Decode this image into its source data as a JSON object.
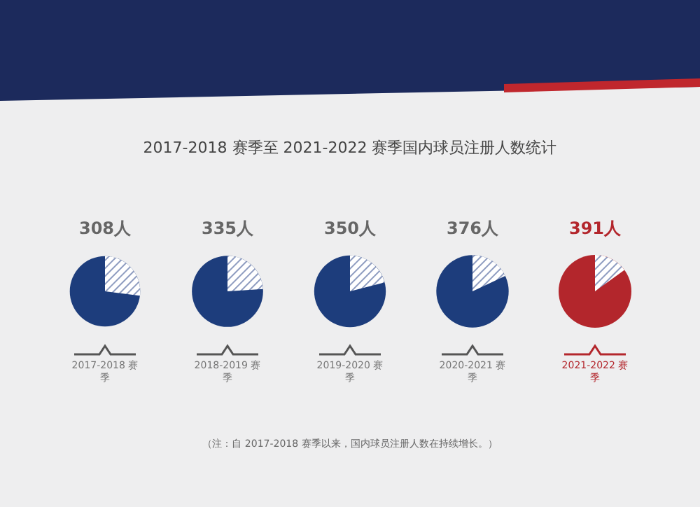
{
  "chart_data": {
    "type": "other",
    "title": "2017-2018 赛季至 2021-2022 赛季国内球员注册人数统计",
    "categories": [
      "2017-2018 赛季",
      "2018-2019 赛季",
      "2019-2020 赛季",
      "2020-2021 赛季",
      "2021-2022 赛季"
    ],
    "values": [
      308,
      335,
      350,
      376,
      391
    ],
    "value_labels": [
      "308人",
      "335人",
      "350人",
      "376人",
      "391人"
    ],
    "colors": [
      "#1d3d7c",
      "#1d3d7c",
      "#1d3d7c",
      "#1d3d7c",
      "#b3262c"
    ],
    "annotations": [
      "（注：自 2017-2018 赛季以来，国内球员注册人数在持续增长。）"
    ]
  }
}
